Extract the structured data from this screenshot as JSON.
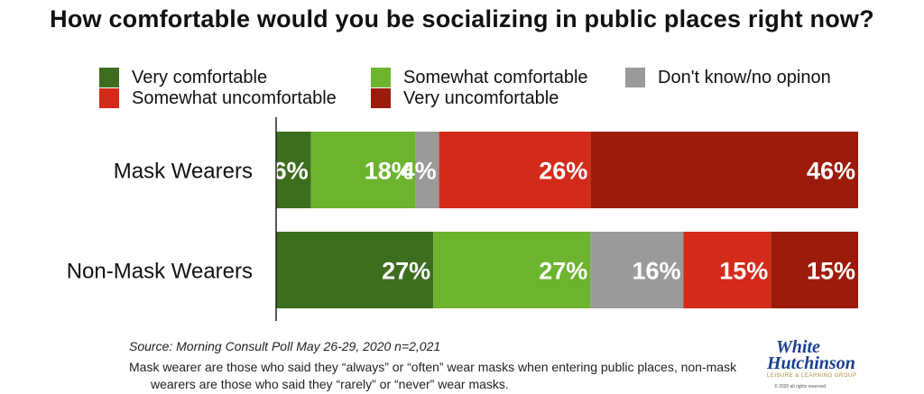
{
  "chart_data": {
    "type": "bar",
    "orientation": "horizontal",
    "stacked": true,
    "title": "How comfortable would you be socializing in public places right now?",
    "categories": [
      "Mask Wearers",
      "Non-Mask Wearers"
    ],
    "series": [
      {
        "name": "Very comfortable",
        "color": "#3d6e1f",
        "values": [
          6,
          27
        ],
        "labels": [
          "6%",
          "27%"
        ]
      },
      {
        "name": "Somewhat comfortable",
        "color": "#6cb32e",
        "values": [
          18,
          27
        ],
        "labels": [
          "18%",
          "27%"
        ]
      },
      {
        "name": "Don't know/no opinon",
        "color": "#9a9a9a",
        "values": [
          4,
          16
        ],
        "labels": [
          "4%",
          "16%"
        ]
      },
      {
        "name": "Somewhat uncomfortable",
        "color": "#d42a1a",
        "values": [
          26,
          15
        ],
        "labels": [
          "26%",
          "15%"
        ]
      },
      {
        "name": "Very uncomfortable",
        "color": "#9c1b0a",
        "values": [
          46,
          15
        ],
        "labels": [
          "46%",
          "15%"
        ]
      }
    ],
    "xlim": [
      0,
      100
    ],
    "legend_position": "top",
    "grid": false
  },
  "footer": {
    "source": "Source: Morning Consult Poll May 26-29, 2020 n=2,021",
    "note_line1": "Mask wearer are those who said they “always” or “often” wear masks when entering public places, non-mask",
    "note_line2": "wearers are those who said they “rarely” or “never” wear masks."
  },
  "logo": {
    "word1": "White",
    "word2": "Hutchinson",
    "tagline": "LEISURE & LEARNING GROUP",
    "copyright": "© 2020 all rights reserved"
  }
}
